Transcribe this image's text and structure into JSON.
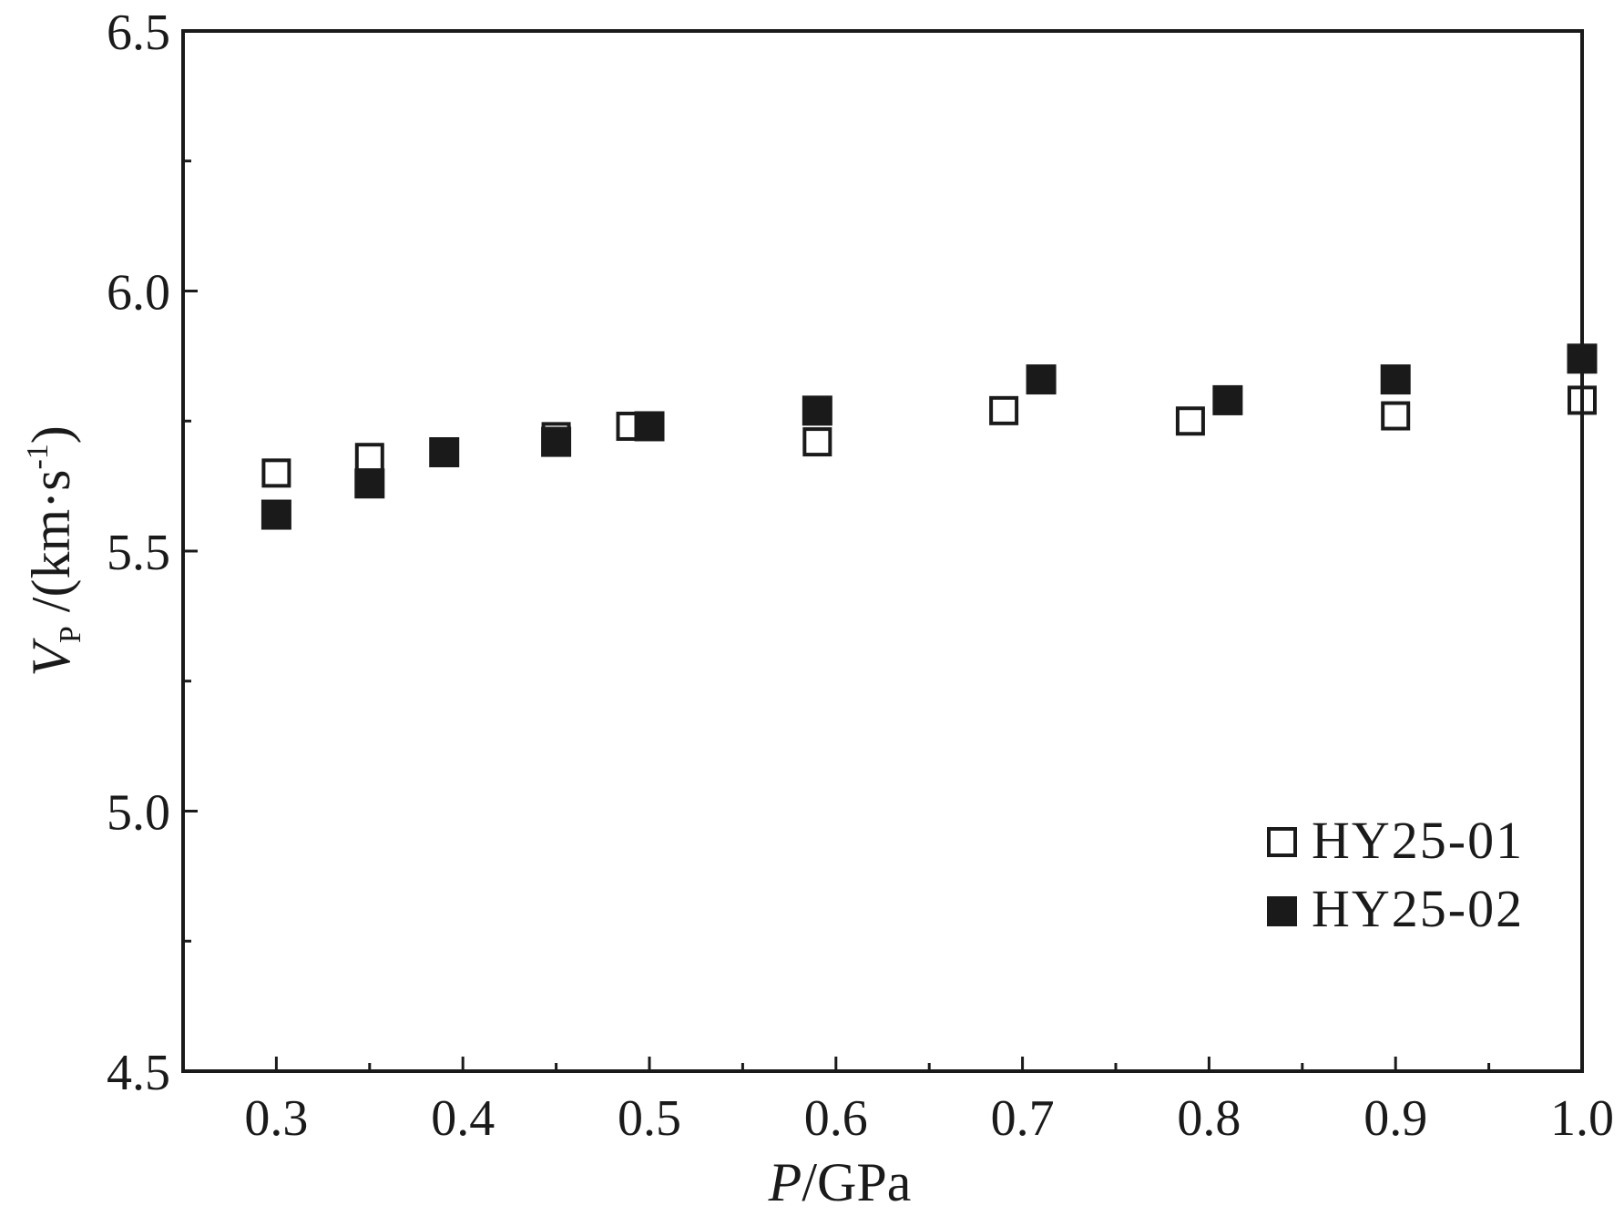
{
  "chart_data": {
    "type": "scatter",
    "xlabel_italic": "P",
    "xlabel_unit": "/GPa",
    "ylabel_italic": "V",
    "ylabel_sub": "P",
    "ylabel_unit_pre": " /(km·s",
    "ylabel_sup": "-1",
    "ylabel_unit_post": ")",
    "xlim": [
      0.25,
      1.0
    ],
    "ylim": [
      4.5,
      6.5
    ],
    "x_ticks": [
      "0.3",
      "0.4",
      "0.5",
      "0.6",
      "0.7",
      "0.8",
      "0.9",
      "1.0"
    ],
    "y_ticks": [
      "4.5",
      "5.0",
      "5.5",
      "6.0",
      "6.5"
    ],
    "legend_position": "bottom-right",
    "series": [
      {
        "name": "HY25-01",
        "marker": "open-square",
        "x": [
          0.3,
          0.35,
          0.45,
          0.49,
          0.59,
          0.69,
          0.79,
          0.9,
          1.0
        ],
        "y": [
          5.65,
          5.68,
          5.72,
          5.74,
          5.71,
          5.77,
          5.75,
          5.76,
          5.79
        ]
      },
      {
        "name": "HY25-02",
        "marker": "filled-square",
        "x": [
          0.3,
          0.35,
          0.39,
          0.45,
          0.5,
          0.59,
          0.71,
          0.81,
          0.9,
          1.0
        ],
        "y": [
          5.57,
          5.63,
          5.69,
          5.71,
          5.74,
          5.77,
          5.83,
          5.79,
          5.83,
          5.87
        ]
      }
    ]
  }
}
